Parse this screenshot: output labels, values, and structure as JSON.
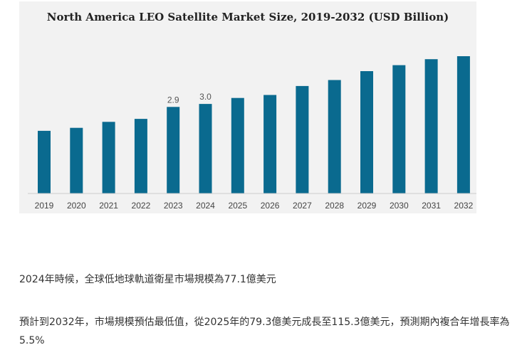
{
  "chart_data": {
    "type": "bar",
    "title": "North America LEO Satellite Market Size, 2019-2032 (USD Billion)",
    "xlabel": "",
    "ylabel": "",
    "categories": [
      "2019",
      "2020",
      "2021",
      "2022",
      "2023",
      "2024",
      "2025",
      "2026",
      "2027",
      "2028",
      "2029",
      "2030",
      "2031",
      "2032"
    ],
    "values": [
      2.1,
      2.2,
      2.4,
      2.5,
      2.9,
      3.0,
      3.2,
      3.3,
      3.6,
      3.8,
      4.1,
      4.3,
      4.5,
      4.6
    ],
    "data_labels": [
      {
        "index": 4,
        "text": "2.9"
      },
      {
        "index": 5,
        "text": "3.0"
      }
    ],
    "ylim": [
      0,
      5.1
    ],
    "grid": false,
    "colors": {
      "bar": "#0a6a8f",
      "background": "#f2f2f2",
      "axis": "#cccccc"
    }
  },
  "article": {
    "paragraph_1": "2024年時候，全球低地球軌道衛星市場規模為77.1億美元",
    "paragraph_2": "預計到2032年，市場規模預估最低值，從2025年的79.3億美元成長至115.3億美元，預測期內複合年增長率為5.5%"
  }
}
